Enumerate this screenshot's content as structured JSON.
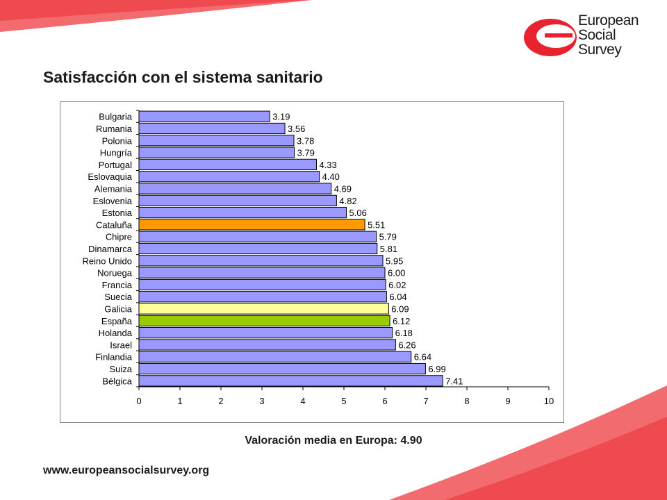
{
  "header": {
    "title": "Satisfacción con el sistema sanitario",
    "logo_lines": [
      "European",
      "Social",
      "Survey"
    ],
    "brand_color": "#e8222e"
  },
  "footer": {
    "average": "Valoración media en Europa: 4.90",
    "url": "www.europeansocialsurvey.org"
  },
  "chart_data": {
    "type": "bar",
    "orientation": "horizontal",
    "title": "",
    "xlabel": "",
    "ylabel": "",
    "xlim": [
      0,
      10
    ],
    "x_ticks": [
      "0",
      "1",
      "2",
      "3",
      "4",
      "5",
      "6",
      "7",
      "8",
      "9",
      "10"
    ],
    "grid": false,
    "categories": [
      "Bulgaria",
      "Rumania",
      "Polonia",
      "Hungría",
      "Portugal",
      "Eslovaquia",
      "Alemania",
      "Eslovenia",
      "Estonia",
      "Cataluña",
      "Chipre",
      "Dinamarca",
      "Reino Unido",
      "Noruega",
      "Francia",
      "Suecia",
      "Galicia",
      "España",
      "Holanda",
      "Israel",
      "Finlandia",
      "Suiza",
      "Bélgica"
    ],
    "values": [
      3.19,
      3.56,
      3.78,
      3.79,
      4.33,
      4.4,
      4.69,
      4.82,
      5.06,
      5.51,
      5.79,
      5.81,
      5.95,
      6.0,
      6.02,
      6.04,
      6.09,
      6.12,
      6.18,
      6.26,
      6.64,
      6.99,
      7.41
    ],
    "value_labels": [
      "3.19",
      "3.56",
      "3.78",
      "3.79",
      "4.33",
      "4.40",
      "4.69",
      "4.82",
      "5.06",
      "5.51",
      "5.79",
      "5.81",
      "5.95",
      "6.00",
      "6.02",
      "6.04",
      "6.09",
      "6.12",
      "6.18",
      "6.26",
      "6.64",
      "6.99",
      "7.41"
    ],
    "colors": {
      "default": "#9999ff",
      "highlights": {
        "Cataluña": "#ff9900",
        "Galicia": "#ffff99",
        "España": "#99cc00"
      }
    }
  }
}
